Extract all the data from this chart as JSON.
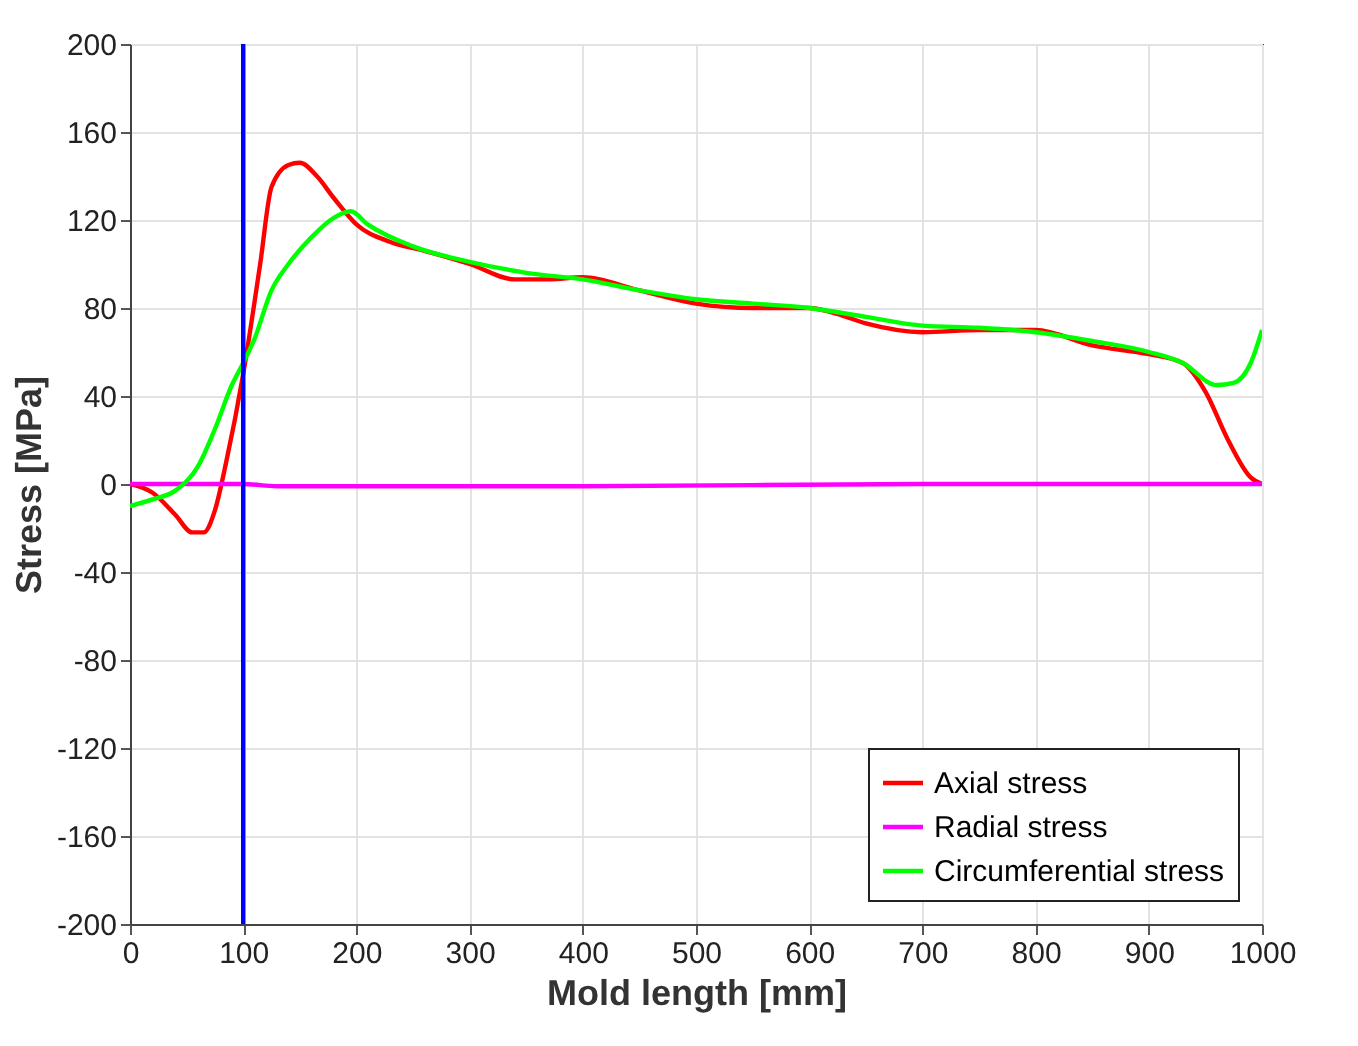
{
  "chart_data": {
    "type": "line",
    "xlabel": "Mold length [mm]",
    "ylabel": "Stress [MPa]",
    "xlim": [
      0,
      1000
    ],
    "xticks": [
      0,
      100,
      200,
      300,
      400,
      500,
      600,
      700,
      800,
      900,
      1000
    ],
    "ylim": [
      -200,
      200
    ],
    "yticks": [
      -200,
      -160,
      -120,
      -80,
      -40,
      0,
      40,
      80,
      120,
      160,
      200
    ],
    "grid": true,
    "legend": "bottom right",
    "line_style": "solid",
    "ref_lines": [
      {
        "axis": "x",
        "value": 100,
        "color": "#0000ff"
      }
    ],
    "series": [
      {
        "name": "Axial stress",
        "color": "#ff0000",
        "x": [
          0,
          20,
          40,
          55,
          65,
          75,
          85,
          100,
          115,
          125,
          140,
          150,
          165,
          180,
          200,
          230,
          260,
          300,
          340,
          370,
          400,
          450,
          500,
          550,
          600,
          620,
          650,
          700,
          750,
          800,
          850,
          900,
          930,
          950,
          970,
          990,
          1000
        ],
        "values": [
          0,
          -4,
          -14,
          -22,
          -22,
          -12,
          10,
          50,
          100,
          135,
          145,
          146,
          140,
          130,
          118,
          110,
          106,
          100,
          93,
          93,
          94,
          88,
          82,
          80,
          80,
          78,
          73,
          69,
          70,
          70,
          63,
          59,
          55,
          42,
          20,
          3,
          0
        ]
      },
      {
        "name": "Radial stress",
        "color": "#ff00ff",
        "x": [
          0,
          100,
          130,
          200,
          400,
          700,
          1000
        ],
        "values": [
          0,
          0,
          -1,
          -1,
          -1,
          0,
          0
        ]
      },
      {
        "name": "Circumferential stress",
        "color": "#00ff00",
        "x": [
          0,
          20,
          40,
          60,
          75,
          90,
          100,
          110,
          125,
          140,
          160,
          180,
          195,
          210,
          250,
          300,
          350,
          400,
          450,
          500,
          550,
          600,
          650,
          700,
          750,
          800,
          850,
          900,
          930,
          960,
          975,
          990,
          1000
        ],
        "values": [
          -10,
          -7,
          -3,
          8,
          25,
          45,
          55,
          66,
          88,
          100,
          112,
          121,
          124,
          118,
          108,
          101,
          96,
          93,
          88,
          84,
          82,
          80,
          76,
          72,
          71,
          69,
          65,
          60,
          55,
          45,
          46,
          55,
          70
        ]
      }
    ]
  }
}
